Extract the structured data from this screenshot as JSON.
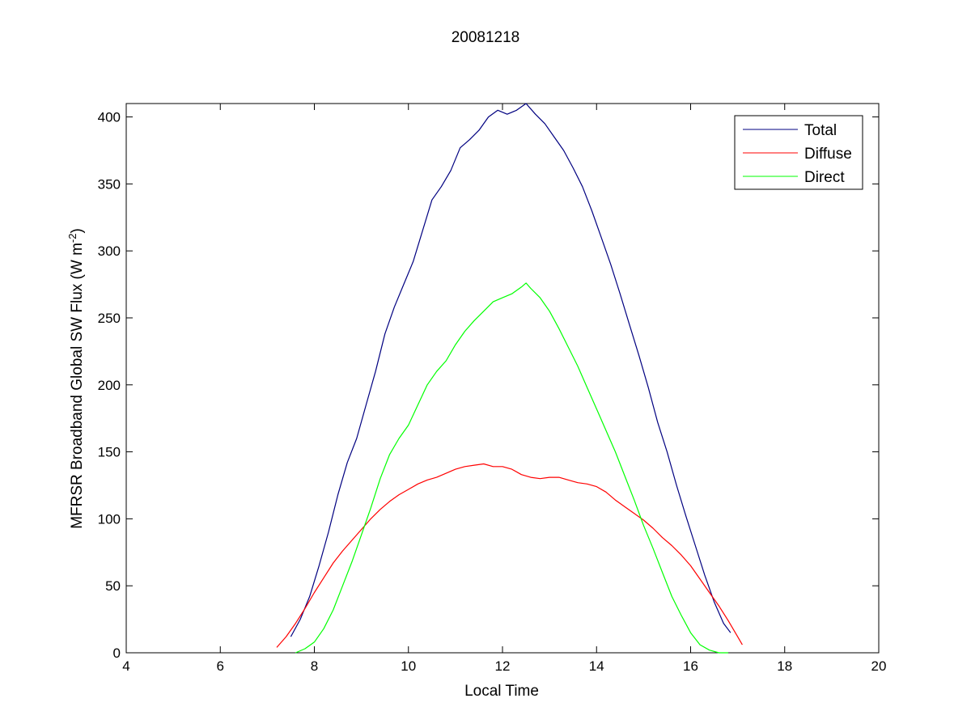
{
  "chart_data": {
    "type": "line",
    "title": "20081218",
    "xlabel": "Local Time",
    "ylabel": "MFRSR Broadband Global SW Flux (W m",
    "ylabel_sup": "-2",
    "ylabel_close": ")",
    "xlim": [
      4,
      20
    ],
    "ylim": [
      0,
      410
    ],
    "xticks": [
      4,
      6,
      8,
      10,
      12,
      14,
      16,
      18,
      20
    ],
    "yticks": [
      0,
      50,
      100,
      150,
      200,
      250,
      300,
      350,
      400
    ],
    "grid": false,
    "legend_position": "top-right",
    "series": [
      {
        "name": "Total",
        "color": "#000080",
        "x": [
          7.5,
          7.7,
          7.9,
          8.1,
          8.3,
          8.5,
          8.7,
          8.9,
          9.1,
          9.3,
          9.5,
          9.7,
          9.9,
          10.1,
          10.3,
          10.5,
          10.7,
          10.9,
          11.1,
          11.3,
          11.5,
          11.7,
          11.9,
          12.1,
          12.3,
          12.5,
          12.7,
          12.9,
          13.1,
          13.3,
          13.5,
          13.7,
          13.9,
          14.1,
          14.3,
          14.5,
          14.7,
          14.9,
          15.1,
          15.3,
          15.5,
          15.7,
          15.9,
          16.1,
          16.3,
          16.5,
          16.7,
          16.85
        ],
        "y": [
          12,
          25,
          42,
          65,
          90,
          118,
          142,
          160,
          185,
          210,
          238,
          258,
          275,
          292,
          315,
          338,
          348,
          360,
          377,
          383,
          390,
          400,
          405,
          402,
          405,
          410,
          402,
          395,
          385,
          375,
          362,
          348,
          330,
          310,
          290,
          268,
          245,
          222,
          198,
          172,
          150,
          125,
          102,
          80,
          58,
          38,
          22,
          15
        ]
      },
      {
        "name": "Diffuse",
        "color": "#ff0000",
        "x": [
          7.2,
          7.4,
          7.6,
          7.8,
          8.0,
          8.2,
          8.4,
          8.6,
          8.8,
          9.0,
          9.2,
          9.4,
          9.6,
          9.8,
          10.0,
          10.2,
          10.4,
          10.6,
          10.8,
          11.0,
          11.2,
          11.4,
          11.6,
          11.8,
          12.0,
          12.2,
          12.4,
          12.6,
          12.8,
          13.0,
          13.2,
          13.4,
          13.6,
          13.8,
          14.0,
          14.2,
          14.4,
          14.6,
          14.8,
          15.0,
          15.2,
          15.4,
          15.6,
          15.8,
          16.0,
          16.2,
          16.4,
          16.6,
          16.8,
          17.0,
          17.1
        ],
        "y": [
          4,
          12,
          22,
          33,
          45,
          56,
          67,
          76,
          84,
          92,
          100,
          107,
          113,
          118,
          122,
          126,
          129,
          131,
          134,
          137,
          139,
          140,
          141,
          139,
          139,
          137,
          133,
          131,
          130,
          131,
          131,
          129,
          127,
          126,
          124,
          120,
          114,
          109,
          104,
          99,
          93,
          86,
          80,
          73,
          65,
          55,
          45,
          35,
          24,
          12,
          6
        ]
      },
      {
        "name": "Direct",
        "color": "#00ff00",
        "x": [
          7.6,
          7.8,
          8.0,
          8.2,
          8.4,
          8.6,
          8.8,
          9.0,
          9.2,
          9.4,
          9.6,
          9.8,
          10.0,
          10.2,
          10.4,
          10.6,
          10.8,
          11.0,
          11.2,
          11.4,
          11.6,
          11.8,
          12.0,
          12.2,
          12.4,
          12.5,
          12.6,
          12.8,
          13.0,
          13.2,
          13.4,
          13.6,
          13.8,
          14.0,
          14.2,
          14.4,
          14.6,
          14.8,
          15.0,
          15.2,
          15.4,
          15.6,
          15.8,
          16.0,
          16.2,
          16.4,
          16.6,
          16.8
        ],
        "y": [
          0,
          3,
          8,
          18,
          32,
          50,
          68,
          88,
          108,
          130,
          148,
          160,
          170,
          185,
          200,
          210,
          218,
          230,
          240,
          248,
          255,
          262,
          265,
          268,
          273,
          276,
          272,
          265,
          255,
          242,
          228,
          214,
          198,
          182,
          166,
          150,
          132,
          114,
          95,
          78,
          60,
          42,
          28,
          15,
          6,
          2,
          0,
          0
        ]
      }
    ]
  }
}
